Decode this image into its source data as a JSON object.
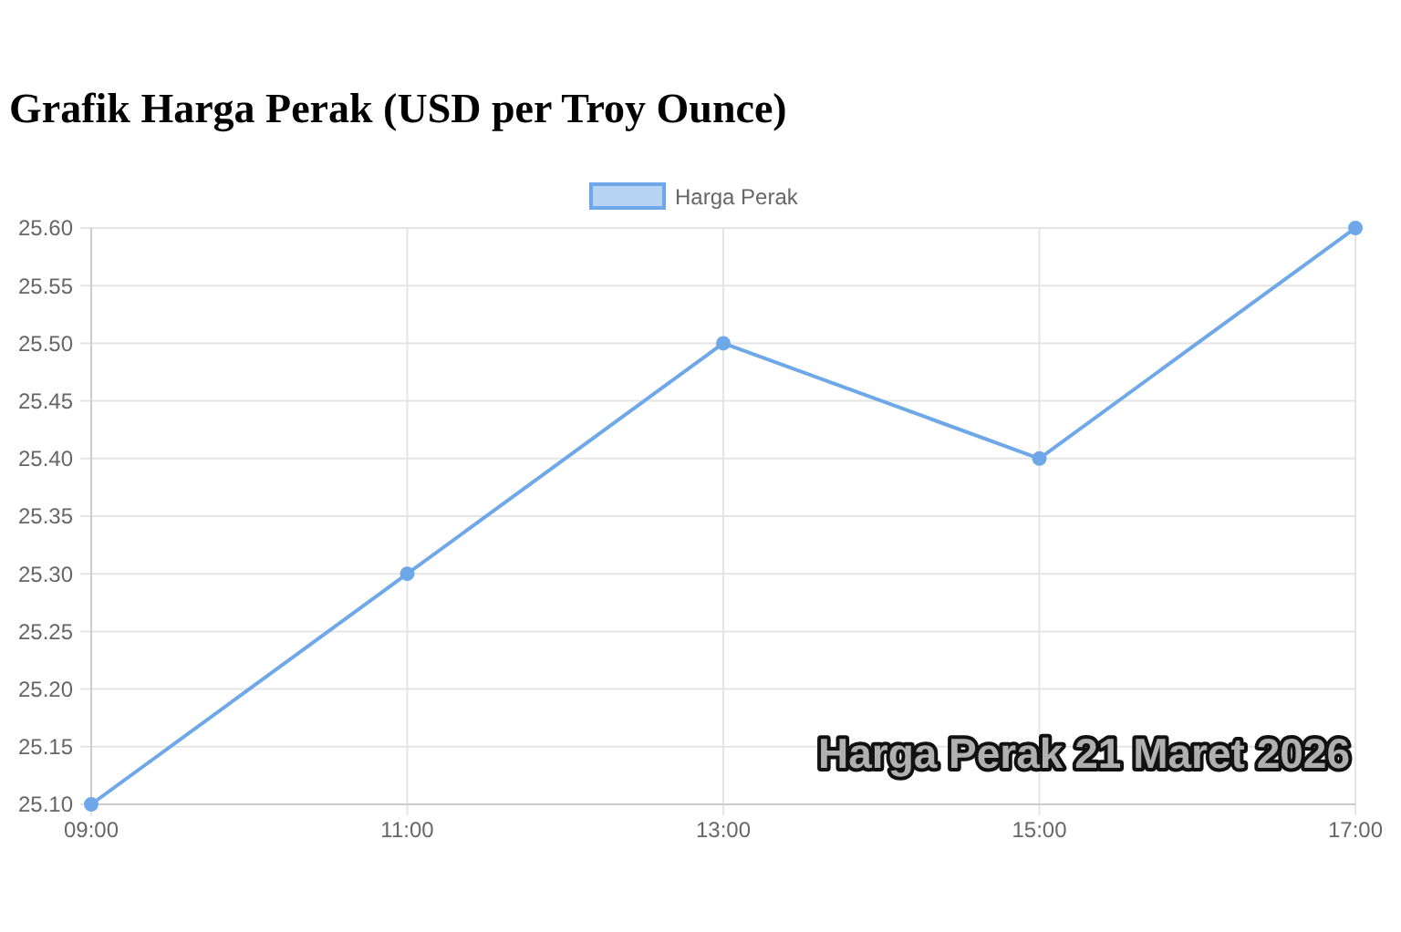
{
  "chart_data": {
    "type": "line",
    "title": "Grafik Harga Perak (USD per Troy Ounce)",
    "categories": [
      "09:00",
      "11:00",
      "13:00",
      "15:00",
      "17:00"
    ],
    "series": [
      {
        "name": "Harga Perak",
        "color": "#6fa8e8",
        "values": [
          25.1,
          25.3,
          25.5,
          25.4,
          25.6
        ]
      }
    ],
    "ylim": [
      25.1,
      25.6
    ],
    "yticks": [
      {
        "value": 25.1,
        "label": "25.10"
      },
      {
        "value": 25.15,
        "label": "25.15"
      },
      {
        "value": 25.2,
        "label": "25.20"
      },
      {
        "value": 25.25,
        "label": "25.25"
      },
      {
        "value": 25.3,
        "label": "25.30"
      },
      {
        "value": 25.35,
        "label": "25.35"
      },
      {
        "value": 25.4,
        "label": "25.40"
      },
      {
        "value": 25.45,
        "label": "25.45"
      },
      {
        "value": 25.5,
        "label": "25.50"
      },
      {
        "value": 25.55,
        "label": "25.55"
      },
      {
        "value": 25.6,
        "label": "25.60"
      }
    ],
    "grid": true,
    "legend": "top",
    "marker": "circle",
    "line_style": "solid",
    "annotations": [
      "Harga Perak 21 Maret 2026"
    ]
  }
}
